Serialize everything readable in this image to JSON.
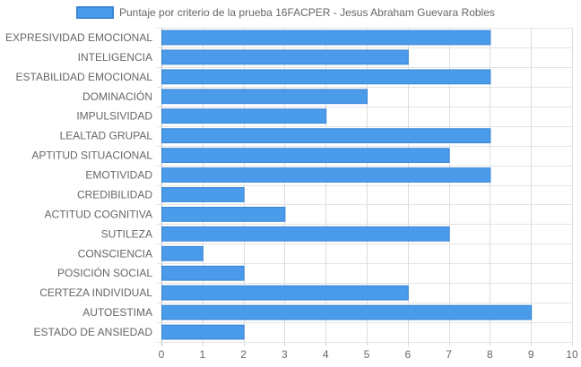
{
  "chart_data": {
    "type": "bar",
    "orientation": "horizontal",
    "legend_position": "top",
    "grid": true,
    "xlim": [
      0,
      10
    ],
    "x_ticks": [
      "0",
      "1",
      "2",
      "3",
      "4",
      "5",
      "6",
      "7",
      "8",
      "9",
      "10"
    ],
    "categories": [
      "EXPRESIVIDAD EMOCIONAL",
      "INTELIGENCIA",
      "ESTABILIDAD EMOCIONAL",
      "DOMINACIÓN",
      "IMPULSIVIDAD",
      "LEALTAD GRUPAL",
      "APTITUD SITUACIONAL",
      "EMOTIVIDAD",
      "CREDIBILIDAD",
      "ACTITUD COGNITIVA",
      "SUTILEZA",
      "CONSCIENCIA",
      "POSICIÓN SOCIAL",
      "CERTEZA INDIVIDUAL",
      "AUTOESTIMA",
      "ESTADO DE ANSIEDAD"
    ],
    "series": [
      {
        "name": "Puntaje por criterio de la prueba 16FACPER - Jesus Abraham Guevara Robles",
        "color": "#4a9bea",
        "border_color": "#3a85d6",
        "values": [
          8,
          6,
          8,
          5,
          4,
          8,
          7,
          8,
          2,
          3,
          7,
          1,
          2,
          6,
          9,
          2
        ]
      }
    ]
  }
}
